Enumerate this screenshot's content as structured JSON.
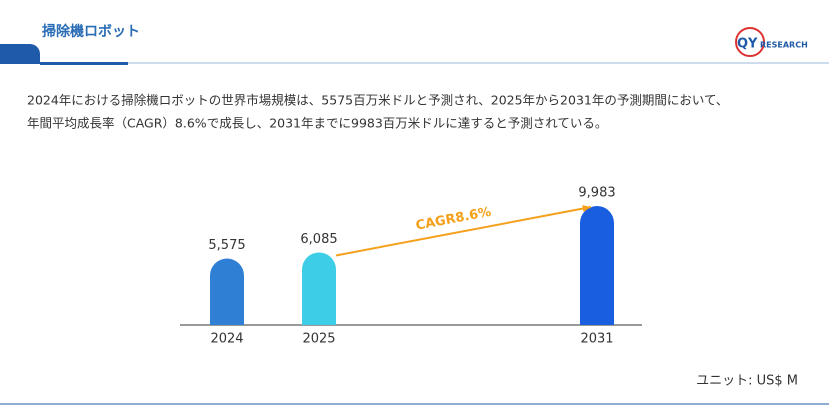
{
  "header": {
    "title": "掃除機ロボット",
    "logo": {
      "mark": "QY",
      "text": "RESEARCH"
    }
  },
  "description": [
    "2024年における掃除機ロボットの世界市場規模は、5575百万米ドルと予測され、2025年から2031年の予測期間において、",
    "年間平均成長率（CAGR）8.6%で成長し、2031年までに9983百万米ドルに達すると予測されている。"
  ],
  "chart_data": {
    "type": "bar",
    "categories": [
      "2024",
      "2025",
      "2031"
    ],
    "values": [
      5575,
      6085,
      9983
    ],
    "value_labels": [
      "5,575",
      "6,085",
      "9,983"
    ],
    "colors": [
      "#2f7fd4",
      "#3ecde6",
      "#1a5ee0"
    ],
    "annotation": "CAGR8.6%",
    "unit": "ユニット: US$ M"
  }
}
